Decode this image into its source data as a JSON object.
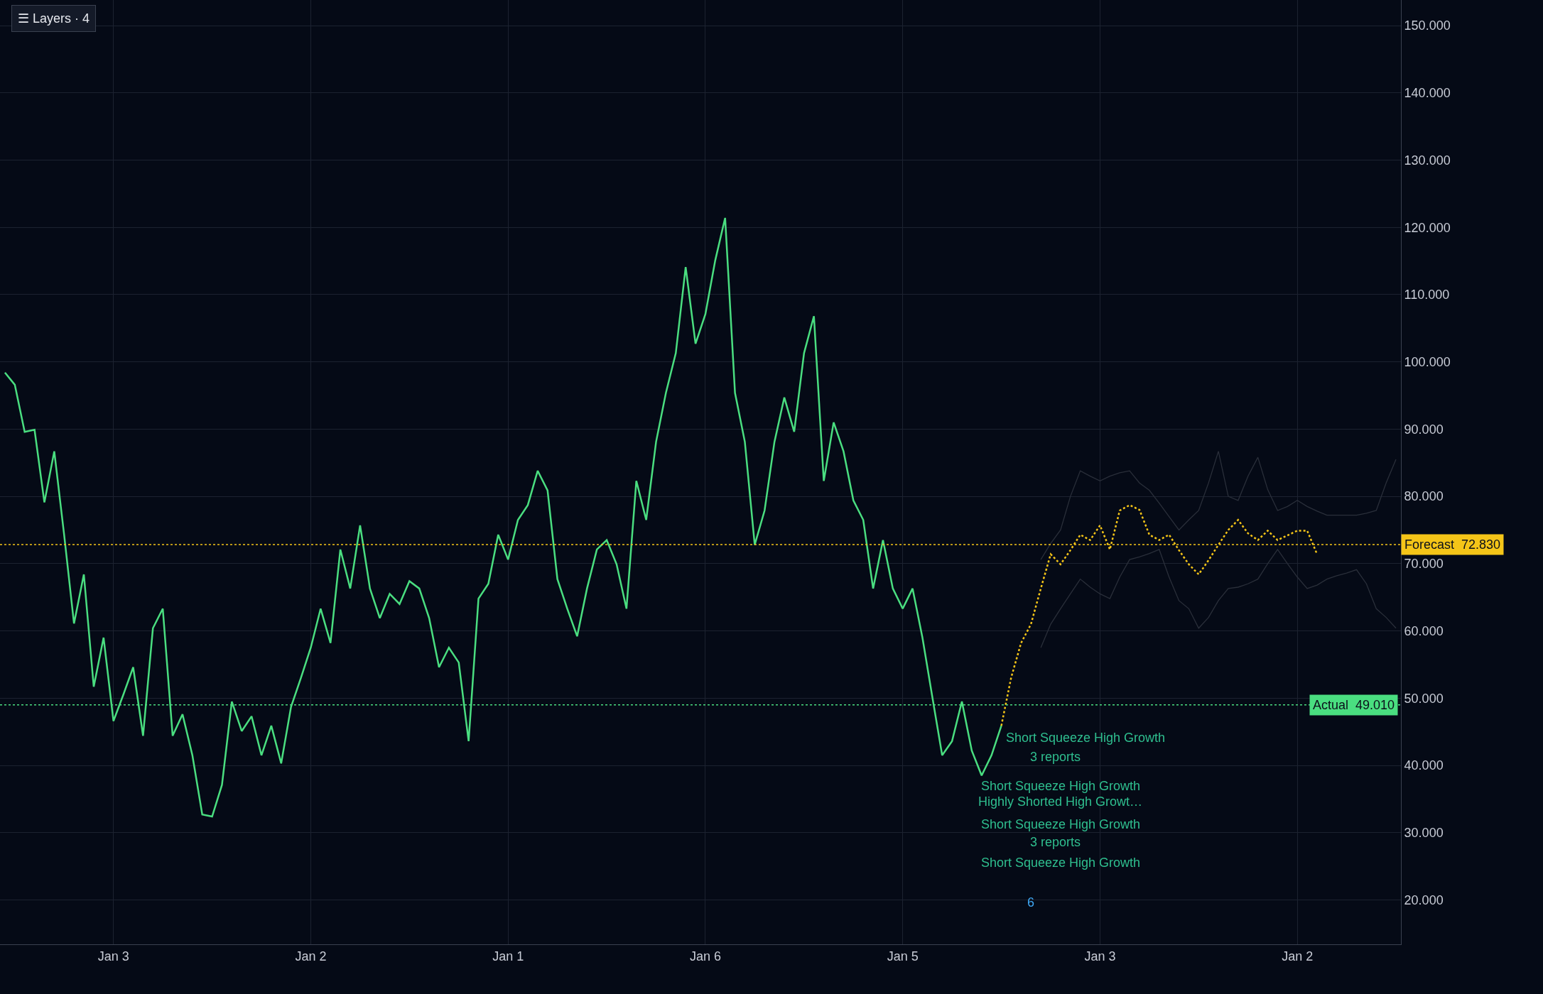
{
  "chart_data": {
    "type": "line",
    "ylim": [
      13.4,
      153.8
    ],
    "categories": [
      null,
      null,
      null,
      null,
      null,
      null,
      null,
      null,
      null,
      null,
      null,
      "Jan 3",
      null,
      null,
      null,
      null,
      null,
      null,
      null,
      null,
      null,
      null,
      null,
      null,
      null,
      null,
      null,
      null,
      null,
      null,
      null,
      "Jan 2",
      null,
      null,
      null,
      null,
      null,
      null,
      null,
      null,
      null,
      null,
      null,
      null,
      null,
      null,
      null,
      null,
      null,
      null,
      null,
      "Jan 1",
      null,
      null,
      null,
      null,
      null,
      null,
      null,
      null,
      null,
      null,
      null,
      null,
      null,
      null,
      null,
      null,
      null,
      null,
      null,
      "Jan 6",
      null,
      null,
      null,
      null,
      null,
      null,
      null,
      null,
      null,
      null,
      null,
      null,
      null,
      null,
      null,
      null,
      null,
      null,
      null,
      "Jan 5",
      null,
      null,
      null,
      null,
      null,
      null,
      null,
      null,
      null,
      null,
      null,
      null,
      null,
      null,
      null,
      null,
      null,
      null,
      null,
      "Jan 3",
      null,
      null,
      null,
      null,
      null,
      null,
      null,
      null,
      null,
      null,
      null,
      null,
      null,
      null,
      null,
      null,
      null,
      null,
      null,
      "Jan 2",
      null,
      null,
      null,
      null,
      null,
      null,
      null,
      null,
      null,
      null
    ],
    "yticks": [
      {
        "value": 20,
        "label": "20.000"
      },
      {
        "value": 30,
        "label": "30.000"
      },
      {
        "value": 40,
        "label": "40.000"
      },
      {
        "value": 50,
        "label": "50.000"
      },
      {
        "value": 60,
        "label": "60.000"
      },
      {
        "value": 70,
        "label": "70.000"
      },
      {
        "value": 80,
        "label": "80.000"
      },
      {
        "value": 90,
        "label": "90.000"
      },
      {
        "value": 100,
        "label": "100.000"
      },
      {
        "value": 110,
        "label": "110.000"
      },
      {
        "value": 120,
        "label": "120.000"
      },
      {
        "value": 130,
        "label": "130.000"
      },
      {
        "value": 140,
        "label": "140.000"
      },
      {
        "value": 150,
        "label": "150.000"
      }
    ],
    "grid": true,
    "marker": "none",
    "series": [
      {
        "color": "#2a2f3a",
        "line_style": "solid",
        "values": [
          null,
          null,
          null,
          null,
          null,
          null,
          null,
          null,
          null,
          null,
          null,
          null,
          null,
          null,
          null,
          null,
          null,
          null,
          null,
          null,
          null,
          null,
          null,
          null,
          null,
          null,
          null,
          null,
          null,
          null,
          null,
          null,
          null,
          null,
          null,
          null,
          null,
          null,
          null,
          null,
          null,
          null,
          null,
          null,
          null,
          null,
          null,
          null,
          null,
          null,
          null,
          null,
          null,
          null,
          null,
          null,
          null,
          null,
          null,
          null,
          null,
          null,
          null,
          null,
          null,
          null,
          null,
          null,
          null,
          null,
          null,
          null,
          null,
          null,
          null,
          null,
          null,
          null,
          null,
          null,
          null,
          null,
          null,
          null,
          null,
          null,
          null,
          null,
          null,
          null,
          null,
          null,
          null,
          null,
          null,
          null,
          null,
          null,
          null,
          null,
          null,
          null,
          null,
          null,
          null,
          70.6,
          73,
          75.0,
          80,
          83.8,
          83,
          82.3,
          83,
          83.5,
          83.8,
          82,
          80.9,
          79,
          77,
          75.0,
          76.5,
          77.9,
          82,
          86.7,
          80,
          79.4,
          83,
          85.8,
          81,
          77.9,
          78.5,
          79.4,
          78.5,
          77.8,
          77.2,
          77.2,
          77.2,
          77.2,
          77.5,
          77.9,
          82,
          85.5
        ]
      },
      {
        "color": "#2a2f3a",
        "line_style": "solid",
        "values": [
          null,
          null,
          null,
          null,
          null,
          null,
          null,
          null,
          null,
          null,
          null,
          null,
          null,
          null,
          null,
          null,
          null,
          null,
          null,
          null,
          null,
          null,
          null,
          null,
          null,
          null,
          null,
          null,
          null,
          null,
          null,
          null,
          null,
          null,
          null,
          null,
          null,
          null,
          null,
          null,
          null,
          null,
          null,
          null,
          null,
          null,
          null,
          null,
          null,
          null,
          null,
          null,
          null,
          null,
          null,
          null,
          null,
          null,
          null,
          null,
          null,
          null,
          null,
          null,
          null,
          null,
          null,
          null,
          null,
          null,
          null,
          null,
          null,
          null,
          null,
          null,
          null,
          null,
          null,
          null,
          null,
          null,
          null,
          null,
          null,
          null,
          null,
          null,
          null,
          null,
          null,
          null,
          null,
          null,
          null,
          null,
          null,
          null,
          null,
          null,
          null,
          null,
          null,
          null,
          null,
          57.5,
          61,
          63.3,
          65.5,
          67.7,
          66.5,
          65.5,
          64.8,
          68,
          70.6,
          71,
          71.5,
          72.1,
          68,
          64.5,
          63.3,
          60.4,
          62,
          64.5,
          66.3,
          66.5,
          67,
          67.7,
          70,
          72.1,
          70,
          68,
          66.3,
          66.8,
          67.7,
          68.2,
          68.6,
          69.1,
          67,
          63.3,
          62,
          60.4
        ]
      },
      {
        "color": "#4ade80",
        "line_style": "solid",
        "values": [
          98.4,
          96.6,
          89.6,
          89.9,
          79.1,
          86.7,
          74.3,
          61.1,
          68.4,
          51.7,
          59.0,
          46.6,
          50.5,
          54.6,
          44.4,
          60.4,
          63.3,
          44.4,
          47.6,
          41.5,
          32.7,
          32.4,
          37.1,
          49.5,
          45.1,
          47.3,
          41.5,
          45.9,
          40.3,
          48.7,
          53.0,
          57.5,
          63.3,
          58.2,
          72.1,
          66.3,
          75.7,
          66.3,
          61.9,
          65.5,
          64.0,
          67.4,
          66.3,
          61.9,
          54.6,
          57.5,
          55.3,
          43.6,
          64.8,
          67.0,
          74.3,
          70.6,
          76.5,
          78.7,
          83.8,
          80.9,
          67.7,
          63.3,
          59.2,
          66.3,
          72.1,
          73.5,
          69.9,
          63.3,
          82.3,
          76.5,
          88.1,
          95.4,
          101.3,
          114.1,
          102.7,
          107.1,
          115.1,
          121.4,
          95.4,
          88.1,
          72.8,
          77.9,
          88.1,
          94.7,
          89.6,
          101.3,
          106.8,
          82.3,
          91.0,
          86.7,
          79.4,
          76.5,
          66.3,
          73.5,
          66.3,
          63.3,
          66.3,
          59.0,
          50.2,
          41.5,
          43.6,
          49.5,
          42.2,
          38.5,
          41.5,
          45.9,
          null,
          null,
          null,
          null,
          null,
          null,
          null,
          null,
          null,
          null,
          null,
          null,
          null,
          null,
          null,
          null,
          null,
          null,
          null,
          null,
          null,
          null,
          null,
          null,
          null,
          null,
          null,
          null,
          null,
          null,
          null,
          null,
          null,
          null,
          null,
          null,
          null,
          null,
          null,
          null
        ]
      },
      {
        "color": "#f5c518",
        "line_style": "dotted",
        "values": [
          null,
          null,
          null,
          null,
          null,
          null,
          null,
          null,
          null,
          null,
          null,
          null,
          null,
          null,
          null,
          null,
          null,
          null,
          null,
          null,
          null,
          null,
          null,
          null,
          null,
          null,
          null,
          null,
          null,
          null,
          null,
          null,
          null,
          null,
          null,
          null,
          null,
          null,
          null,
          null,
          null,
          null,
          null,
          null,
          null,
          null,
          null,
          null,
          null,
          null,
          null,
          null,
          null,
          null,
          null,
          null,
          null,
          null,
          null,
          null,
          null,
          null,
          null,
          null,
          null,
          null,
          null,
          null,
          null,
          null,
          null,
          null,
          null,
          null,
          null,
          null,
          null,
          null,
          null,
          null,
          null,
          null,
          null,
          null,
          null,
          null,
          null,
          null,
          null,
          null,
          null,
          null,
          null,
          null,
          null,
          null,
          null,
          null,
          null,
          null,
          null,
          45.9,
          53.1,
          58.2,
          61.0,
          66.3,
          71.4,
          69.9,
          72.0,
          74.3,
          73.5,
          75.7,
          72.1,
          77.9,
          78.7,
          78.0,
          74.3,
          73.5,
          74.3,
          72.0,
          69.9,
          68.4,
          70.5,
          72.8,
          75.0,
          76.5,
          74.5,
          73.5,
          74.9,
          73.5,
          74.2,
          74.9,
          74.9,
          71.4,
          null,
          null,
          null,
          null,
          null,
          null,
          null,
          null
        ]
      }
    ],
    "ref_lines": [
      {
        "axis": "y",
        "value": 72.83,
        "label": "Forecast  72.830",
        "color": "#f5c518",
        "line_style": "dotted"
      },
      {
        "axis": "y",
        "value": 49.01,
        "label": "Actual  49.010",
        "color": "#4ade80",
        "line_style": "dotted"
      }
    ],
    "annotations": [
      "☰ Layers · 4",
      "Short Squeeze High Growth",
      "3 reports",
      "Short Squeeze High Growth",
      "Highly Shorted High Growt…",
      "Short Squeeze High Growth",
      "3 reports",
      "Short Squeeze High Growth",
      "6"
    ]
  }
}
